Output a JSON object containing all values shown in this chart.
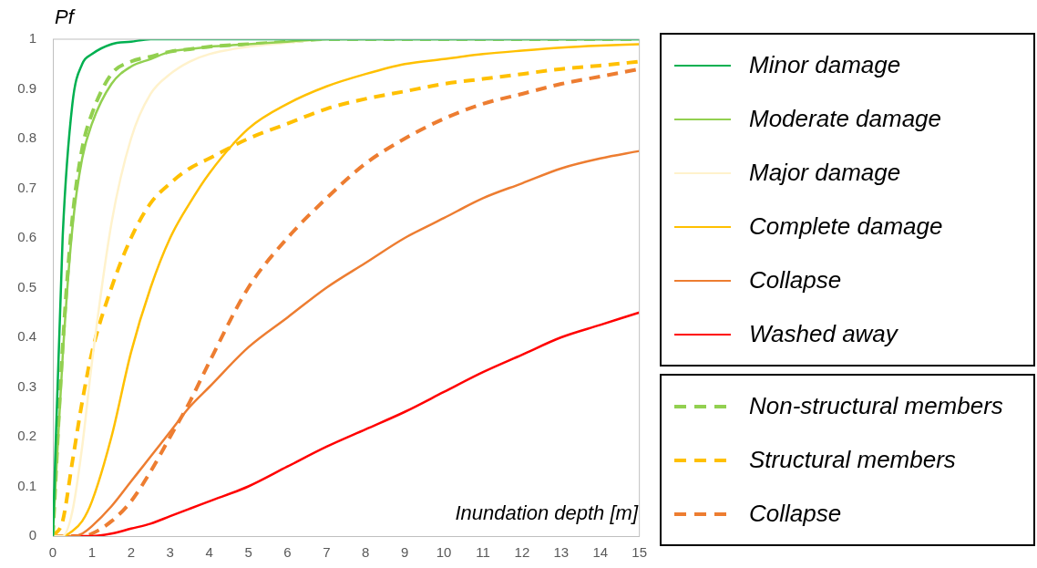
{
  "chart_data": {
    "type": "line",
    "ylabel": "Pf",
    "xlabel": "Inundation depth [m]",
    "x": [
      0,
      0.25,
      0.5,
      0.75,
      1,
      1.5,
      2,
      2.5,
      3,
      3.5,
      4,
      5,
      6,
      7,
      8,
      9,
      10,
      11,
      12,
      13,
      14,
      15
    ],
    "xlim": [
      0,
      15
    ],
    "xticks": [
      0,
      1,
      2,
      3,
      4,
      5,
      6,
      7,
      8,
      9,
      10,
      11,
      12,
      13,
      14,
      15
    ],
    "ylim": [
      0,
      1
    ],
    "yticks": [
      0,
      0.1,
      0.2,
      0.3,
      0.4,
      0.5,
      0.6,
      0.7,
      0.8,
      0.9,
      1
    ],
    "grid": false,
    "legend": "right",
    "marker": "none",
    "series": [
      {
        "name": "Minor damage",
        "color": "#00b050",
        "line_style": "solid",
        "values": [
          0,
          0.6,
          0.87,
          0.95,
          0.97,
          0.99,
          0.995,
          1,
          1,
          1,
          1,
          1,
          1,
          1,
          1,
          1,
          1,
          1,
          1,
          1,
          1,
          1
        ]
      },
      {
        "name": "Moderate damage",
        "color": "#92d050",
        "line_style": "solid",
        "values": [
          0,
          0.36,
          0.62,
          0.76,
          0.83,
          0.91,
          0.945,
          0.96,
          0.975,
          0.98,
          0.985,
          0.99,
          0.995,
          1,
          1,
          1,
          1,
          1,
          1,
          1,
          1,
          1
        ]
      },
      {
        "name": "Major damage",
        "color": "#fff2cc",
        "line_style": "solid",
        "values": [
          0,
          0,
          0.05,
          0.18,
          0.35,
          0.63,
          0.8,
          0.89,
          0.93,
          0.955,
          0.97,
          0.985,
          0.993,
          1,
          1,
          1,
          1,
          1,
          1,
          1,
          1,
          1
        ]
      },
      {
        "name": "Complete damage",
        "color": "#ffc000",
        "line_style": "solid",
        "values": [
          0,
          0,
          0.01,
          0.03,
          0.07,
          0.2,
          0.37,
          0.5,
          0.6,
          0.67,
          0.73,
          0.82,
          0.87,
          0.905,
          0.93,
          0.95,
          0.96,
          0.97,
          0.977,
          0.983,
          0.987,
          0.99
        ]
      },
      {
        "name": "Collapse",
        "color": "#ed7d31",
        "line_style": "solid",
        "values": [
          0,
          0,
          0,
          0.005,
          0.02,
          0.06,
          0.11,
          0.16,
          0.21,
          0.26,
          0.3,
          0.38,
          0.44,
          0.5,
          0.55,
          0.6,
          0.64,
          0.68,
          0.71,
          0.74,
          0.76,
          0.775
        ]
      },
      {
        "name": "Washed away",
        "color": "#ff0000",
        "line_style": "solid",
        "values": [
          null,
          null,
          0,
          0,
          0,
          0.005,
          0.015,
          0.025,
          0.04,
          0.055,
          0.07,
          0.1,
          0.14,
          0.18,
          0.215,
          0.25,
          0.29,
          0.33,
          0.365,
          0.4,
          0.425,
          0.45
        ]
      },
      {
        "name": "Non-structural members",
        "color": "#92d050",
        "line_style": "dashed",
        "values": [
          0,
          0.38,
          0.64,
          0.78,
          0.85,
          0.93,
          0.955,
          0.965,
          0.975,
          0.98,
          0.985,
          0.99,
          0.995,
          1,
          1,
          1,
          1,
          1,
          1,
          1,
          1,
          1
        ]
      },
      {
        "name": "Structural members",
        "color": "#ffc000",
        "line_style": "dashed",
        "values": [
          0,
          0.03,
          0.15,
          0.27,
          0.37,
          0.5,
          0.6,
          0.67,
          0.71,
          0.74,
          0.76,
          0.8,
          0.83,
          0.86,
          0.88,
          0.895,
          0.91,
          0.92,
          0.93,
          0.94,
          0.947,
          0.955
        ]
      },
      {
        "name": "Collapse",
        "color": "#ed7d31",
        "line_style": "dashed",
        "values": [
          0,
          0,
          0,
          0,
          0.005,
          0.03,
          0.07,
          0.13,
          0.2,
          0.27,
          0.35,
          0.5,
          0.6,
          0.68,
          0.75,
          0.8,
          0.84,
          0.87,
          0.89,
          0.91,
          0.925,
          0.94
        ]
      }
    ]
  }
}
